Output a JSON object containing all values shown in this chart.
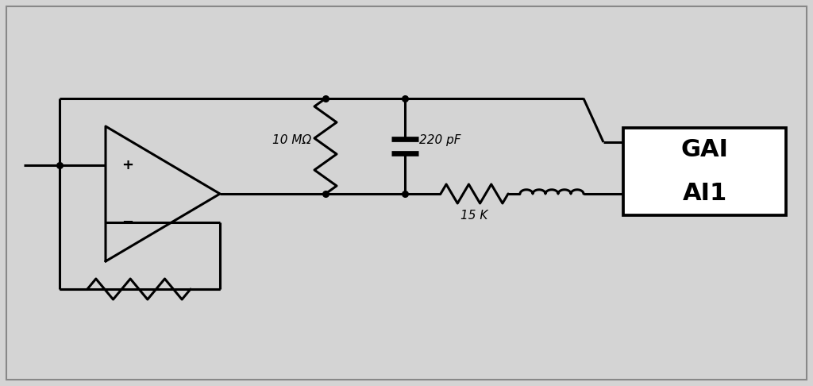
{
  "bg_color": "#d4d4d4",
  "line_color": "#000000",
  "lw": 2.2,
  "dot_r": 5.5,
  "fig_w": 10.24,
  "fig_h": 4.86,
  "label_10M": "10 MΩ",
  "label_220pF": "220 pF",
  "label_15K": "15 K",
  "label_GAI": "GAI",
  "label_AI1": "AI1",
  "border_color": "#888888",
  "white": "#ffffff"
}
